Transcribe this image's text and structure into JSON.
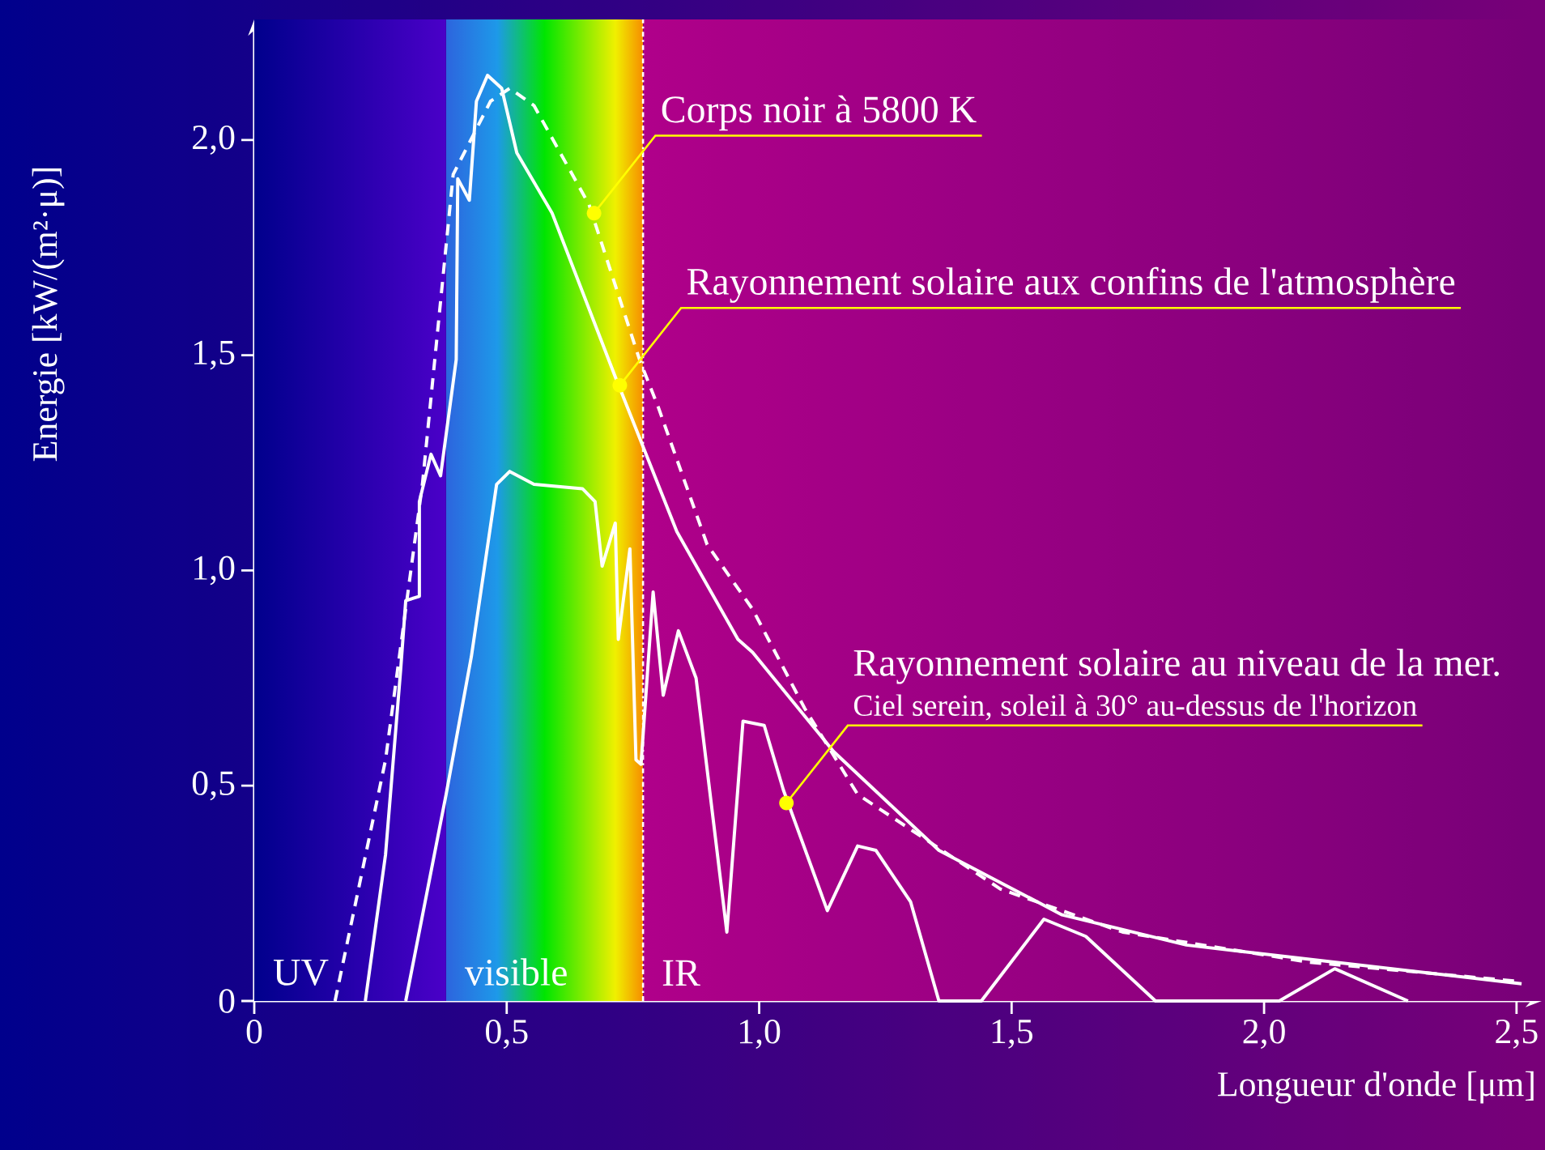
{
  "chart_data": {
    "type": "line",
    "xlabel": "Longueur d'onde [μm]",
    "ylabel": "Energie [kW/(m²·μ)]",
    "xlim": [
      0,
      2.55
    ],
    "ylim": [
      0,
      2.28
    ],
    "xticks": [
      0,
      {
        "value": 0.5,
        "label": "0,5"
      },
      {
        "value": 1.0,
        "label": "1,0"
      },
      {
        "value": 1.5,
        "label": "1,5"
      },
      {
        "value": 2.0,
        "label": "2,0"
      },
      {
        "value": 2.5,
        "label": "2,5"
      }
    ],
    "yticks": [
      0,
      {
        "value": 0.5,
        "label": "0,5"
      },
      {
        "value": 1.0,
        "label": "1,0"
      },
      {
        "value": 1.5,
        "label": "1,5"
      },
      {
        "value": 2.0,
        "label": "2,0"
      }
    ],
    "series": [
      {
        "color": "#ffffff",
        "line_style": "dashed",
        "x": [
          0.16,
          0.26,
          0.333,
          0.394,
          0.468,
          0.506,
          0.554,
          0.663,
          0.763,
          0.8,
          0.897,
          0.987,
          1.09,
          1.195,
          1.478,
          1.72,
          2.09,
          2.51
        ],
        "values": [
          0,
          0.56,
          1.2,
          1.92,
          2.09,
          2.12,
          2.08,
          1.85,
          1.49,
          1.38,
          1.06,
          0.91,
          0.68,
          0.48,
          0.26,
          0.16,
          0.09,
          0.045
        ]
      },
      {
        "color": "#ffffff",
        "line_style": "solid",
        "x": [
          0.22,
          0.26,
          0.29,
          0.3,
          0.327,
          0.327,
          0.35,
          0.369,
          0.4,
          0.403,
          0.426,
          0.44,
          0.462,
          0.49,
          0.52,
          0.59,
          0.715,
          0.837,
          0.958,
          0.987,
          1.147,
          1.356,
          1.6,
          1.846,
          2.51
        ],
        "values": [
          0,
          0.34,
          0.77,
          0.93,
          0.94,
          1.16,
          1.27,
          1.22,
          1.49,
          1.91,
          1.86,
          2.09,
          2.15,
          2.12,
          1.97,
          1.83,
          1.45,
          1.09,
          0.84,
          0.81,
          0.58,
          0.35,
          0.2,
          0.13,
          0.04
        ]
      },
      {
        "color": "#ffffff",
        "line_style": "solid",
        "x": [
          0.3,
          0.38,
          0.43,
          0.48,
          0.506,
          0.554,
          0.65,
          0.675,
          0.689,
          0.715,
          0.721,
          0.744,
          0.756,
          0.766,
          0.79,
          0.81,
          0.84,
          0.875,
          0.936,
          0.968,
          1.01,
          1.048,
          1.135,
          1.195,
          1.231,
          1.3,
          1.356,
          1.44,
          1.564,
          1.647,
          1.785,
          2.03,
          2.14,
          2.285
        ],
        "values": [
          0,
          0.48,
          0.8,
          1.2,
          1.23,
          1.2,
          1.19,
          1.16,
          1.01,
          1.11,
          0.84,
          1.05,
          0.56,
          0.55,
          0.95,
          0.71,
          0.86,
          0.75,
          0.16,
          0.65,
          0.64,
          0.49,
          0.21,
          0.36,
          0.35,
          0.23,
          0,
          0,
          0.19,
          0.15,
          0,
          0,
          0.075,
          0
        ]
      }
    ],
    "bands": [
      {
        "axis": "x",
        "from": 0,
        "to": 0.38,
        "label": "UV",
        "color": "#4a00c8"
      },
      {
        "axis": "x",
        "from": 0.38,
        "to": 0.77,
        "label": "visible",
        "color": "#f0f000"
      },
      {
        "axis": "x",
        "from": 0.77,
        "to": 2.55,
        "label": "IR",
        "color": "#b0008a"
      }
    ],
    "ref_lines": [
      {
        "axis": "x",
        "value": 0.77,
        "color": "#ffffff"
      }
    ],
    "annotations": [
      {
        "text": "Corps noir à 5800 K",
        "x": 0.673,
        "y": 1.83
      },
      {
        "text": "Rayonnement solaire aux confins de l'atmosphère",
        "x": 0.724,
        "y": 1.43
      },
      {
        "text": "Rayonnement solaire au niveau de la mer.",
        "x": 1.054,
        "y": 0.46
      },
      "Ciel serein, soleil à 30° au-dessus de l'horizon"
    ]
  }
}
